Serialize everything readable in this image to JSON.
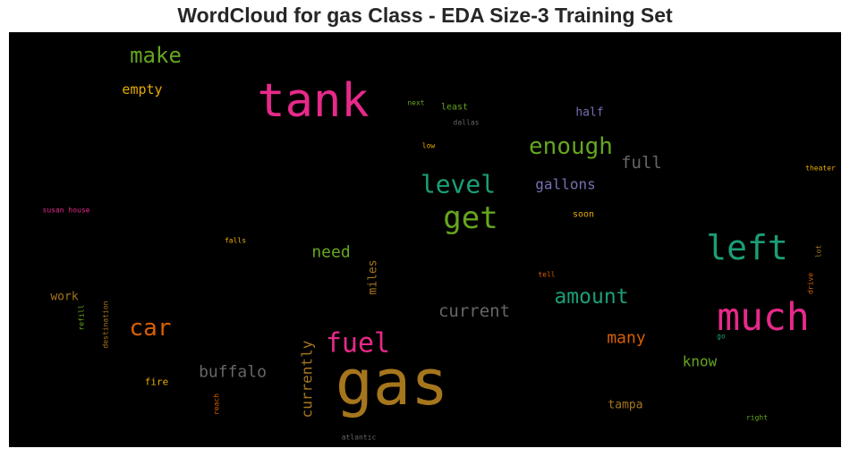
{
  "chart_data": {
    "type": "wordcloud",
    "title": "WordCloud for gas Class - EDA Size-3 Training Set",
    "background": "#000000",
    "words": [
      {
        "text": "tank",
        "weight": 52,
        "color": "#e7298a",
        "vertical": false
      },
      {
        "text": "gas",
        "weight": 70,
        "color": "#a6761d",
        "vertical": false
      },
      {
        "text": "much",
        "weight": 43,
        "color": "#e7298a",
        "vertical": false
      },
      {
        "text": "left",
        "weight": 38,
        "color": "#1b9e77",
        "vertical": false
      },
      {
        "text": "get",
        "weight": 34,
        "color": "#66a61e",
        "vertical": false
      },
      {
        "text": "fuel",
        "weight": 30,
        "color": "#e7298a",
        "vertical": false
      },
      {
        "text": "level",
        "weight": 28,
        "color": "#1b9e77",
        "vertical": false
      },
      {
        "text": "enough",
        "weight": 26,
        "color": "#66a61e",
        "vertical": false
      },
      {
        "text": "car",
        "weight": 26,
        "color": "#d95f02",
        "vertical": false
      },
      {
        "text": "make",
        "weight": 24,
        "color": "#66a61e",
        "vertical": false
      },
      {
        "text": "amount",
        "weight": 23,
        "color": "#1b9e77",
        "vertical": false
      },
      {
        "text": "current",
        "weight": 19,
        "color": "#666666",
        "vertical": false
      },
      {
        "text": "full",
        "weight": 19,
        "color": "#666666",
        "vertical": false
      },
      {
        "text": "buffalo",
        "weight": 18,
        "color": "#666666",
        "vertical": false
      },
      {
        "text": "many",
        "weight": 18,
        "color": "#d95f02",
        "vertical": false
      },
      {
        "text": "need",
        "weight": 18,
        "color": "#66a61e",
        "vertical": false
      },
      {
        "text": "currently",
        "weight": 16,
        "color": "#a6761d",
        "vertical": true
      },
      {
        "text": "gallons",
        "weight": 16,
        "color": "#7570b3",
        "vertical": false
      },
      {
        "text": "know",
        "weight": 16,
        "color": "#66a61e",
        "vertical": false
      },
      {
        "text": "empty",
        "weight": 15,
        "color": "#e6ab02",
        "vertical": false
      },
      {
        "text": "miles",
        "weight": 13,
        "color": "#a6761d",
        "vertical": true
      },
      {
        "text": "half",
        "weight": 13,
        "color": "#7570b3",
        "vertical": false
      },
      {
        "text": "tampa",
        "weight": 13,
        "color": "#a6761d",
        "vertical": false
      },
      {
        "text": "work",
        "weight": 13,
        "color": "#a6761d",
        "vertical": false
      },
      {
        "text": "fire",
        "weight": 11,
        "color": "#e6ab02",
        "vertical": false
      },
      {
        "text": "soon",
        "weight": 10,
        "color": "#e6ab02",
        "vertical": false
      },
      {
        "text": "least",
        "weight": 10,
        "color": "#66a61e",
        "vertical": false
      },
      {
        "text": "susan house",
        "weight": 8,
        "color": "#e7298a",
        "vertical": false
      },
      {
        "text": "falls",
        "weight": 8,
        "color": "#e6ab02",
        "vertical": false
      },
      {
        "text": "low",
        "weight": 8,
        "color": "#e6ab02",
        "vertical": false
      },
      {
        "text": "next",
        "weight": 8,
        "color": "#66a61e",
        "vertical": false
      },
      {
        "text": "dallas",
        "weight": 8,
        "color": "#666666",
        "vertical": false
      },
      {
        "text": "theater",
        "weight": 8,
        "color": "#e6ab02",
        "vertical": false
      },
      {
        "text": "lot",
        "weight": 8,
        "color": "#a6761d",
        "vertical": true
      },
      {
        "text": "drive",
        "weight": 8,
        "color": "#d95f02",
        "vertical": true
      },
      {
        "text": "tell",
        "weight": 8,
        "color": "#d95f02",
        "vertical": false
      },
      {
        "text": "refill",
        "weight": 8,
        "color": "#66a61e",
        "vertical": true
      },
      {
        "text": "destination",
        "weight": 8,
        "color": "#a6761d",
        "vertical": true
      },
      {
        "text": "reach",
        "weight": 8,
        "color": "#d95f02",
        "vertical": true
      },
      {
        "text": "go",
        "weight": 8,
        "color": "#1b9e77",
        "vertical": false
      },
      {
        "text": "right",
        "weight": 8,
        "color": "#66a61e",
        "vertical": false
      },
      {
        "text": "atlantic",
        "weight": 8,
        "color": "#666666",
        "vertical": false
      }
    ]
  }
}
